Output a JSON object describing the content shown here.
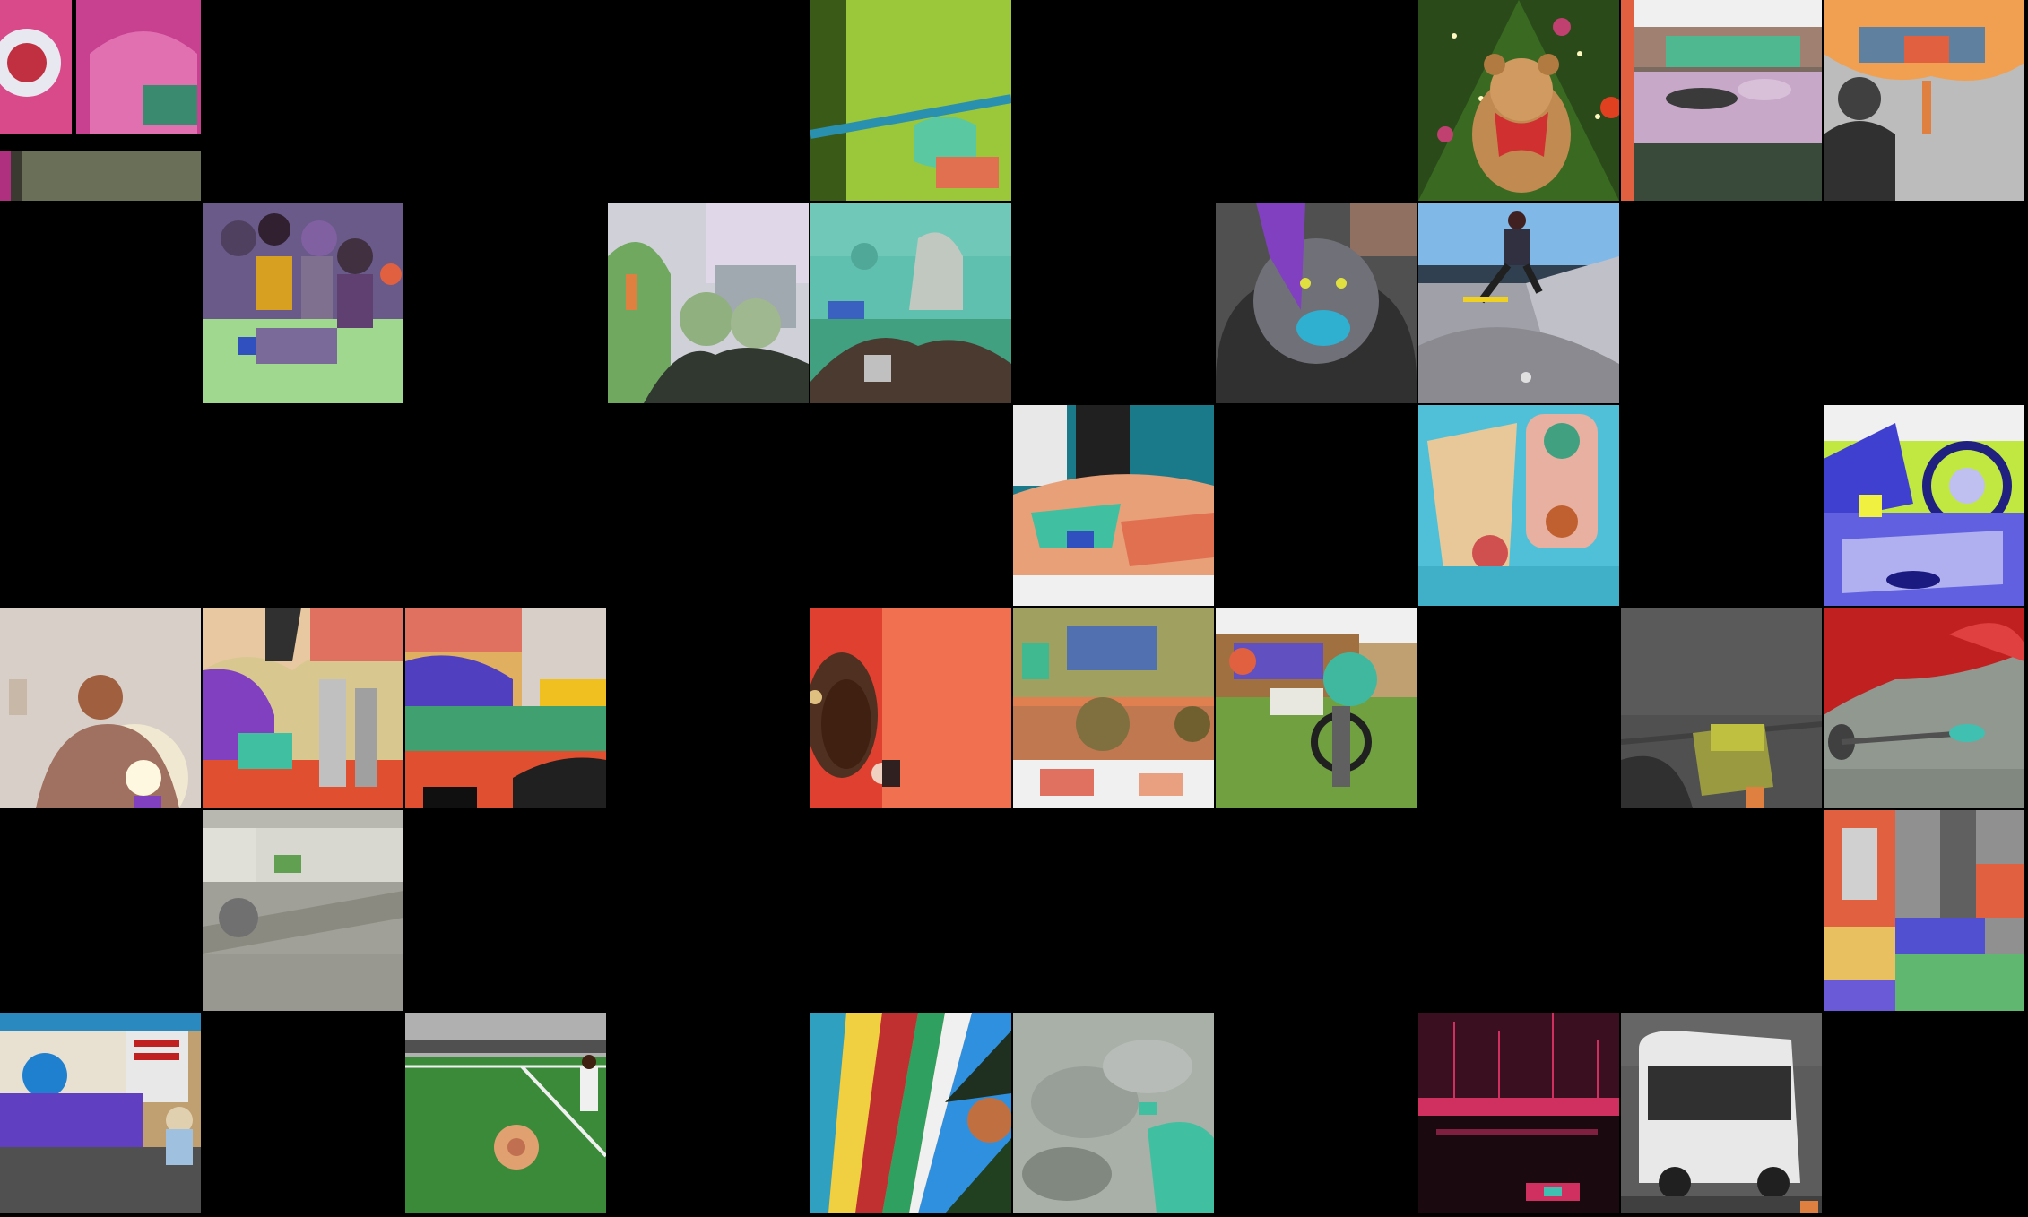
{
  "grid": {
    "columns": 10,
    "rows": 6
  },
  "tiles": [
    {
      "row": 0,
      "col": 0,
      "subject": "pink-inflatable-closeup",
      "colors": [
        "#d84a8a",
        "#e8e8f0",
        "#3a8a70"
      ]
    },
    {
      "row": 0,
      "col": 4,
      "subject": "green-lawn-railing",
      "colors": [
        "#8ab82a",
        "#2a90b0",
        "#5ac8a0"
      ]
    },
    {
      "row": 0,
      "col": 7,
      "subject": "teddy-bear-christmas-tree",
      "colors": [
        "#2a4a1a",
        "#c08a50",
        "#d03030"
      ]
    },
    {
      "row": 0,
      "col": 8,
      "subject": "bedroom-bed",
      "colors": [
        "#c8a8c8",
        "#3a4a3a",
        "#50b890"
      ]
    },
    {
      "row": 0,
      "col": 9,
      "subject": "man-portrait-segmented",
      "colors": [
        "#bcbcbc",
        "#f0a050",
        "#303030"
      ]
    },
    {
      "row": 1,
      "col": 1,
      "subject": "group-of-people-segmented",
      "colors": [
        "#6a5a8a",
        "#a0d890",
        "#3050c0"
      ]
    },
    {
      "row": 1,
      "col": 3,
      "subject": "people-outdoors-building",
      "colors": [
        "#d0d0d8",
        "#70a860",
        "#303830"
      ]
    },
    {
      "row": 1,
      "col": 4,
      "subject": "person-teal-overlay",
      "colors": [
        "#60c0b0",
        "#40a080",
        "#4a3a30"
      ]
    },
    {
      "row": 1,
      "col": 6,
      "subject": "cat-on-chair",
      "colors": [
        "#707078",
        "#8040c0",
        "#30b0d0"
      ]
    },
    {
      "row": 1,
      "col": 7,
      "subject": "skateboarder-park",
      "colors": [
        "#80b8e8",
        "#a0a0a8",
        "#303040"
      ]
    },
    {
      "row": 2,
      "col": 5,
      "subject": "table-bottles-segmented",
      "colors": [
        "#1a7a8a",
        "#e8a078",
        "#40c0a0"
      ]
    },
    {
      "row": 2,
      "col": 7,
      "subject": "sandwich-drink",
      "colors": [
        "#50c0d8",
        "#e8b0a0",
        "#d05050"
      ]
    },
    {
      "row": 2,
      "col": 9,
      "subject": "motorcycle-bright",
      "colors": [
        "#4040d0",
        "#c0e840",
        "#f0f0f0"
      ]
    },
    {
      "row": 3,
      "col": 0,
      "subject": "person-sun-flare",
      "colors": [
        "#d8d0c8",
        "#a06040",
        "#f0e8d0"
      ]
    },
    {
      "row": 3,
      "col": 1,
      "subject": "street-scene-segmented",
      "colors": [
        "#d8c890",
        "#8040c0",
        "#e05030"
      ]
    },
    {
      "row": 3,
      "col": 2,
      "subject": "city-street-segmented",
      "colors": [
        "#e0b060",
        "#5040c0",
        "#40a070"
      ]
    },
    {
      "row": 3,
      "col": 4,
      "subject": "person-red-background",
      "colors": [
        "#e04030",
        "#f07050",
        "#402010"
      ]
    },
    {
      "row": 3,
      "col": 5,
      "subject": "vehicle-segmented",
      "colors": [
        "#a0a060",
        "#e08050",
        "#f0f0f0"
      ]
    },
    {
      "row": 3,
      "col": 6,
      "subject": "motorcycle-grass",
      "colors": [
        "#70a040",
        "#40b8a0",
        "#c0a070"
      ]
    },
    {
      "row": 3,
      "col": 8,
      "subject": "boat-deck-gray",
      "colors": [
        "#505050",
        "#c0c040",
        "#303030"
      ]
    },
    {
      "row": 3,
      "col": 9,
      "subject": "red-lips-spoon",
      "colors": [
        "#c02020",
        "#909890",
        "#40c0b0"
      ]
    },
    {
      "row": 4,
      "col": 1,
      "subject": "truck-on-road",
      "colors": [
        "#a0a098",
        "#60a050",
        "#707070"
      ]
    },
    {
      "row": 4,
      "col": 9,
      "subject": "machine-segmented",
      "colors": [
        "#e06040",
        "#60b870",
        "#5050d0"
      ]
    },
    {
      "row": 5,
      "col": 0,
      "subject": "storefront-scooters",
      "colors": [
        "#c0a070",
        "#6040c0",
        "#2a8ac0"
      ]
    },
    {
      "row": 5,
      "col": 2,
      "subject": "soccer-field",
      "colors": [
        "#3a8a3a",
        "#e0a070",
        "#f0f0f0"
      ]
    },
    {
      "row": 5,
      "col": 4,
      "subject": "umbrella-palm",
      "colors": [
        "#3090e0",
        "#e08030",
        "#30a030"
      ]
    },
    {
      "row": 5,
      "col": 5,
      "subject": "gray-texture-segmented",
      "colors": [
        "#a8b0a8",
        "#40c0a0",
        "#808880"
      ]
    },
    {
      "row": 5,
      "col": 7,
      "subject": "harbor-pink-night",
      "colors": [
        "#1a0a10",
        "#d03060",
        "#40c0b0"
      ]
    },
    {
      "row": 5,
      "col": 8,
      "subject": "bus-gray",
      "colors": [
        "#606060",
        "#f0f0f0",
        "#303030"
      ]
    }
  ]
}
